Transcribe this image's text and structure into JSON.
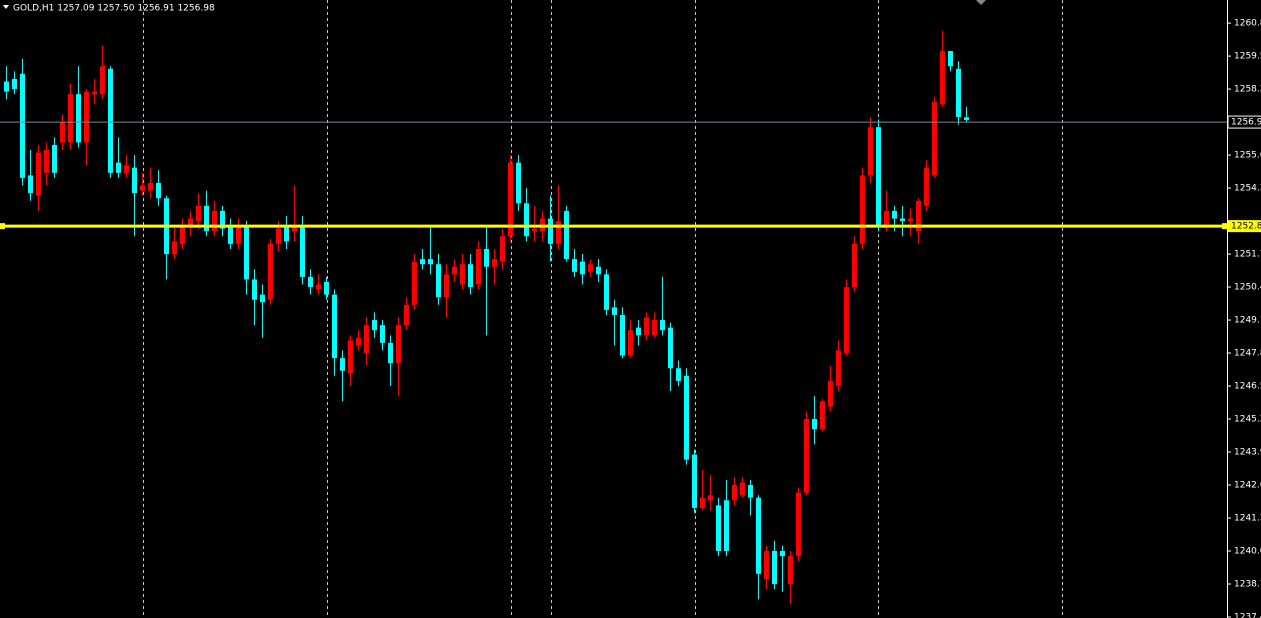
{
  "chart_data": {
    "type": "candlestick",
    "header": "GOLD,H1  1257.09 1257.50 1256.91 1256.98",
    "up_color": "#ff0000",
    "down_color": "#00ffff",
    "ylim": [
      1237.36,
      1261.71
    ],
    "yticks": [
      1260.8,
      1259.5,
      1258.2,
      1255.6,
      1254.3,
      1251.7,
      1250.4,
      1249.1,
      1247.8,
      1246.5,
      1245.2,
      1243.9,
      1242.6,
      1241.3,
      {
        "value": 1240,
        "label": "1240.0"
      },
      1238.7,
      1237.4
    ],
    "grid": false,
    "hline": {
      "value": 1252.8,
      "color": "#ffff00"
    },
    "bid_line": {
      "value": 1256.9,
      "color": "#7a8a9a"
    },
    "open": [
      1258.5,
      1258.6,
      1258.8,
      1254.8,
      1254.0,
      1254.9,
      1256.0,
      1256.1,
      1256.1,
      1258.0,
      1256.1,
      1258.0,
      1258.0,
      1259.0,
      1255.3,
      1254.9,
      1255.1,
      1254.2,
      1254.2,
      1254.5,
      1253.9,
      1251.7,
      1252.1,
      1252.8,
      1253.0,
      1253.6,
      1252.6,
      1253.4,
      1252.8,
      1252.1,
      1252.8,
      1250.7,
      1250.1,
      1249.9,
      1252.1,
      1252.8,
      1252.6,
      1252.8,
      1250.8,
      1250.3,
      1250.6,
      1250.1,
      1247.6,
      1247.0,
      1248.1,
      1247.8,
      1249.1,
      1248.9,
      1248.2,
      1247.4,
      1248.9,
      1249.7,
      1251.5,
      1251.5,
      1251.3,
      1250.0,
      1250.9,
      1250.5,
      1251.3,
      1250.5,
      1251.9,
      1251.2,
      1251.4,
      1252.4,
      1255.3,
      1253.7,
      1252.6,
      1252.6,
      1253.1,
      1252.1,
      1253.4,
      1251.5,
      1251.4,
      1251.0,
      1251.2,
      1250.9,
      1249.6,
      1249.3,
      1247.7,
      1248.8,
      1248.5,
      1248.5,
      1249.1,
      1248.8,
      1247.2,
      1246.9,
      1243.8,
      1241.7,
      1242.0,
      1241.8,
      1242.0,
      1242.0,
      1242.2,
      1242.6,
      1242.1,
      1238.9,
      1240.0,
      1240.0,
      1238.7,
      1239.8,
      1242.3,
      1245.2,
      1244.8,
      1245.7,
      1246.5,
      1247.8,
      1250.4,
      1252.1,
      1254.8,
      1256.7,
      1252.8,
      1253.4,
      1253.1,
      1253.0,
      1252.6,
      1253.6,
      1254.8,
      1257.6,
      1259.7,
      1259.0,
      1257.09
    ],
    "high": [
      1259.1,
      1258.9,
      1259.4,
      1255.8,
      1256.0,
      1256.1,
      1256.3,
      1257.2,
      1258.4,
      1259.1,
      1258.2,
      1258.6,
      1259.9,
      1259.1,
      1256.3,
      1255.6,
      1255.6,
      1254.9,
      1255.1,
      1255.0,
      1254.0,
      1252.8,
      1253.1,
      1253.4,
      1254.1,
      1254.2,
      1253.8,
      1253.6,
      1253.1,
      1253.1,
      1253.0,
      1251.1,
      1250.5,
      1252.3,
      1253.0,
      1253.2,
      1254.4,
      1253.2,
      1251.1,
      1250.9,
      1250.8,
      1250.3,
      1247.9,
      1248.5,
      1248.7,
      1249.2,
      1249.4,
      1249.1,
      1248.5,
      1249.2,
      1250.0,
      1251.7,
      1251.9,
      1252.8,
      1251.7,
      1251.3,
      1251.5,
      1251.7,
      1251.7,
      1252.2,
      1252.8,
      1251.9,
      1252.7,
      1255.6,
      1255.6,
      1254.3,
      1253.6,
      1253.4,
      1254.0,
      1254.4,
      1253.6,
      1251.9,
      1251.7,
      1251.5,
      1251.5,
      1251.1,
      1249.9,
      1249.6,
      1249.1,
      1249.1,
      1249.4,
      1249.4,
      1250.8,
      1249.0,
      1247.5,
      1247.2,
      1244.0,
      1243.2,
      1243.0,
      1242.1,
      1242.8,
      1242.9,
      1242.9,
      1242.8,
      1242.2,
      1240.2,
      1240.4,
      1240.2,
      1240.0,
      1242.5,
      1245.5,
      1246.1,
      1246.0,
      1247.3,
      1248.3,
      1250.7,
      1252.4,
      1255.1,
      1257.1,
      1257.0,
      1254.2,
      1253.6,
      1253.6,
      1253.5,
      1253.9,
      1255.4,
      1257.9,
      1260.5,
      1259.7,
      1259.3,
      1257.5
    ],
    "low": [
      1257.8,
      1258.0,
      1254.4,
      1253.8,
      1253.4,
      1254.4,
      1254.7,
      1255.8,
      1255.8,
      1255.9,
      1255.2,
      1257.6,
      1257.8,
      1254.7,
      1254.7,
      1254.7,
      1252.4,
      1254.0,
      1253.9,
      1253.6,
      1250.7,
      1251.5,
      1251.9,
      1252.4,
      1252.7,
      1252.4,
      1252.4,
      1252.4,
      1251.9,
      1251.9,
      1250.1,
      1248.9,
      1248.4,
      1249.7,
      1251.8,
      1251.9,
      1252.2,
      1250.5,
      1250.1,
      1250.1,
      1249.9,
      1246.9,
      1245.9,
      1246.5,
      1247.9,
      1247.3,
      1248.4,
      1247.9,
      1246.5,
      1246.1,
      1248.7,
      1249.5,
      1251.1,
      1250.9,
      1249.7,
      1249.2,
      1250.6,
      1250.3,
      1250.1,
      1250.3,
      1248.5,
      1250.5,
      1251.1,
      1252.2,
      1253.4,
      1252.2,
      1252.2,
      1252.2,
      1251.4,
      1251.9,
      1251.4,
      1250.8,
      1250.5,
      1250.8,
      1250.6,
      1249.3,
      1248.1,
      1247.6,
      1247.6,
      1248.1,
      1248.3,
      1248.4,
      1248.5,
      1246.3,
      1246.5,
      1243.4,
      1241.5,
      1241.6,
      1241.6,
      1239.8,
      1239.8,
      1241.8,
      1242.1,
      1241.4,
      1238.1,
      1238.5,
      1238.5,
      1238.4,
      1237.9,
      1239.6,
      1242.2,
      1244.2,
      1244.7,
      1245.5,
      1246.3,
      1247.7,
      1250.2,
      1251.9,
      1254.5,
      1252.6,
      1252.6,
      1252.6,
      1252.4,
      1252.4,
      1252.1,
      1253.4,
      1254.7,
      1257.5,
      1258.9,
      1256.8,
      1256.91
    ],
    "close": [
      1258.1,
      1258.2,
      1254.7,
      1254.1,
      1255.7,
      1255.8,
      1254.9,
      1256.9,
      1258.0,
      1256.1,
      1258.1,
      1258.1,
      1259.1,
      1254.9,
      1254.9,
      1255.2,
      1254.1,
      1254.4,
      1254.5,
      1253.9,
      1251.7,
      1252.2,
      1252.8,
      1253.1,
      1253.6,
      1252.6,
      1253.4,
      1252.7,
      1252.1,
      1252.8,
      1250.7,
      1249.9,
      1249.8,
      1252.1,
      1252.7,
      1252.2,
      1252.8,
      1250.8,
      1250.4,
      1250.5,
      1250.1,
      1247.6,
      1247.1,
      1248.3,
      1248.4,
      1248.9,
      1248.7,
      1248.2,
      1247.4,
      1248.9,
      1249.7,
      1251.4,
      1251.3,
      1251.3,
      1250.0,
      1250.9,
      1251.2,
      1251.3,
      1250.4,
      1251.9,
      1251.2,
      1251.5,
      1252.4,
      1255.3,
      1253.7,
      1252.4,
      1252.7,
      1253.1,
      1252.1,
      1253.0,
      1251.5,
      1251.0,
      1250.9,
      1251.3,
      1250.9,
      1249.5,
      1249.3,
      1247.7,
      1248.7,
      1248.5,
      1249.2,
      1249.1,
      1248.7,
      1247.2,
      1246.7,
      1243.6,
      1241.7,
      1242.1,
      1242.2,
      1240.0,
      1240.0,
      1242.6,
      1242.7,
      1242.1,
      1239.1,
      1240.0,
      1238.7,
      1239.8,
      1239.8,
      1242.3,
      1245.2,
      1244.8,
      1245.9,
      1246.7,
      1247.9,
      1250.4,
      1252.1,
      1254.8,
      1256.7,
      1252.8,
      1253.4,
      1253.1,
      1253.0,
      1253.1,
      1253.8,
      1255.1,
      1257.7,
      1259.7,
      1259.1,
      1257.1,
      1256.98
    ]
  }
}
